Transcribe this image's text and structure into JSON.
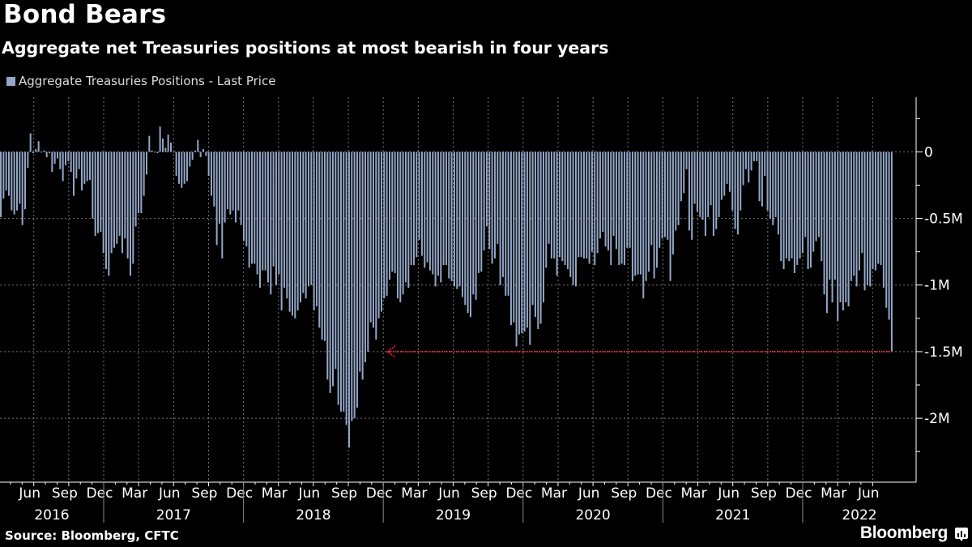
{
  "header": {
    "title": "Bond Bears",
    "subtitle": "Aggregate net Treasuries positions at most bearish in four years"
  },
  "legend": {
    "label": "Aggregate Treasuries Positions - Last Price",
    "color": "#93a7c8"
  },
  "footer": {
    "source": "Source: Bloomberg, CFTC",
    "brand": "Bloomberg",
    "brand_icon": "bloomberg-chart-icon"
  },
  "colors": {
    "bars": "#93a7c8",
    "annotation": "#e8283c",
    "grid": "#777777",
    "background": "#000000"
  },
  "chart_data": {
    "type": "bar",
    "title": "Bond Bears",
    "subtitle": "Aggregate net Treasuries positions at most bearish in four years",
    "frequency": "weekly",
    "series": [
      {
        "name": "Aggregate Treasuries Positions - Last Price",
        "values": [
          -0.49,
          -0.35,
          -0.29,
          -0.33,
          -0.44,
          -0.47,
          -0.44,
          -0.39,
          -0.55,
          -0.43,
          -0.12,
          0.14,
          -0.01,
          0.02,
          0.08,
          0.0,
          0.01,
          -0.04,
          -0.01,
          -0.15,
          -0.09,
          -0.05,
          -0.13,
          -0.22,
          -0.1,
          -0.07,
          -0.15,
          -0.33,
          -0.2,
          -0.13,
          -0.29,
          -0.24,
          -0.22,
          -0.21,
          -0.5,
          -0.63,
          -0.61,
          -0.6,
          -0.76,
          -0.88,
          -0.93,
          -0.76,
          -0.72,
          -0.69,
          -0.63,
          -0.76,
          -0.65,
          -0.8,
          -0.93,
          -0.84,
          -0.56,
          -0.46,
          -0.46,
          -0.33,
          -0.17,
          0.12,
          0.01,
          0.0,
          -0.01,
          0.19,
          0.1,
          0.03,
          0.13,
          0.07,
          0.0,
          -0.18,
          -0.24,
          -0.27,
          -0.24,
          -0.22,
          -0.11,
          -0.06,
          0.01,
          0.09,
          -0.04,
          0.02,
          -0.03,
          -0.18,
          -0.33,
          -0.41,
          -0.7,
          -0.54,
          -0.8,
          -0.53,
          -0.43,
          -0.47,
          -0.44,
          -0.53,
          -0.44,
          -0.55,
          -0.67,
          -0.71,
          -0.87,
          -0.84,
          -0.84,
          -0.92,
          -1.02,
          -0.89,
          -0.89,
          -0.98,
          -1.07,
          -0.86,
          -1.0,
          -0.92,
          -1.19,
          -1.02,
          -1.1,
          -1.2,
          -1.23,
          -1.25,
          -1.19,
          -1.13,
          -1.06,
          -1.1,
          -1.01,
          -1.0,
          -1.19,
          -1.16,
          -1.32,
          -1.41,
          -1.42,
          -1.71,
          -1.81,
          -1.76,
          -1.63,
          -1.9,
          -1.95,
          -1.95,
          -2.05,
          -2.22,
          -2.02,
          -2.0,
          -1.92,
          -1.65,
          -1.71,
          -1.58,
          -1.5,
          -1.28,
          -1.32,
          -1.41,
          -1.25,
          -1.2,
          -1.1,
          -1.08,
          -0.96,
          -0.9,
          -0.91,
          -1.1,
          -1.13,
          -1.07,
          -0.98,
          -1.02,
          -0.85,
          -0.85,
          -0.79,
          -0.66,
          -0.78,
          -0.87,
          -0.83,
          -0.89,
          -0.92,
          -1.01,
          -0.93,
          -0.98,
          -0.85,
          -0.85,
          -0.95,
          -0.97,
          -1.01,
          -1.03,
          -1.01,
          -1.09,
          -1.15,
          -1.21,
          -1.24,
          -1.07,
          -1.11,
          -0.91,
          -0.9,
          -0.74,
          -0.56,
          -0.73,
          -0.84,
          -0.8,
          -0.69,
          -1.0,
          -0.94,
          -1.08,
          -1.08,
          -1.3,
          -1.28,
          -1.46,
          -1.37,
          -1.36,
          -1.35,
          -1.32,
          -1.45,
          -1.15,
          -1.24,
          -1.33,
          -1.29,
          -1.13,
          -0.87,
          -0.69,
          -0.8,
          -0.8,
          -0.93,
          -0.79,
          -0.82,
          -0.85,
          -0.88,
          -0.94,
          -1.0,
          -1.01,
          -0.79,
          -0.79,
          -0.8,
          -0.8,
          -0.84,
          -0.75,
          -0.85,
          -0.76,
          -0.65,
          -0.6,
          -0.71,
          -0.74,
          -0.85,
          -0.63,
          -0.73,
          -0.85,
          -0.84,
          -0.85,
          -0.72,
          -0.72,
          -0.97,
          -0.93,
          -0.92,
          -0.92,
          -1.1,
          -0.97,
          -0.9,
          -0.7,
          -0.95,
          -0.87,
          -0.72,
          -0.65,
          -0.64,
          -0.66,
          -0.97,
          -0.77,
          -0.59,
          -0.55,
          -0.37,
          -0.31,
          -0.13,
          -0.59,
          -0.66,
          -0.39,
          -0.45,
          -0.49,
          -0.51,
          -0.63,
          -0.49,
          -0.4,
          -0.63,
          -0.58,
          -0.49,
          -0.36,
          -0.33,
          -0.24,
          -0.3,
          -0.44,
          -0.58,
          -0.62,
          -0.44,
          -0.25,
          -0.13,
          -0.23,
          -0.14,
          -0.07,
          -0.07,
          -0.37,
          -0.41,
          -0.18,
          -0.44,
          -0.5,
          -0.55,
          -0.49,
          -0.62,
          -0.82,
          -0.88,
          -0.8,
          -0.82,
          -0.8,
          -0.91,
          -0.85,
          -0.8,
          -0.76,
          -0.64,
          -0.88,
          -0.87,
          -0.75,
          -0.67,
          -0.64,
          -0.82,
          -1.07,
          -1.21,
          -0.96,
          -1.13,
          -0.96,
          -1.27,
          -1.13,
          -1.19,
          -1.13,
          -1.16,
          -0.97,
          -0.93,
          -1.01,
          -0.89,
          -0.76,
          -1.04,
          -1.0,
          -1.01,
          -0.88,
          -0.89,
          -0.84,
          -0.85,
          -1.02,
          -1.17,
          -1.26,
          -1.5
        ]
      }
    ],
    "x_month_ticks": [
      "Jun",
      "Sep",
      "Dec",
      "Mar",
      "Jun",
      "Sep",
      "Dec",
      "Mar",
      "Jun",
      "Sep",
      "Dec",
      "Mar",
      "Jun",
      "Sep",
      "Dec",
      "Mar",
      "Jun",
      "Sep",
      "Dec",
      "Mar",
      "Jun",
      "Sep",
      "Dec",
      "Mar",
      "Jun"
    ],
    "x_year_ticks": [
      "2016",
      "2017",
      "2018",
      "2019",
      "2020",
      "2021",
      "2022"
    ],
    "y_ticks": [
      {
        "value": 0,
        "label": "0"
      },
      {
        "value": -0.5,
        "label": "-0.5M"
      },
      {
        "value": -1,
        "label": "-1M"
      },
      {
        "value": -1.5,
        "label": "-1.5M"
      },
      {
        "value": -2,
        "label": "-2M"
      }
    ],
    "ylim": [
      -2.48,
      0.41
    ],
    "y_axis_side": "right",
    "grid": true,
    "legend_position": "top-left",
    "annotations": [
      {
        "type": "horizontal-arrow-line",
        "value": -1.5,
        "direction": "left",
        "style": "dotted"
      }
    ]
  }
}
